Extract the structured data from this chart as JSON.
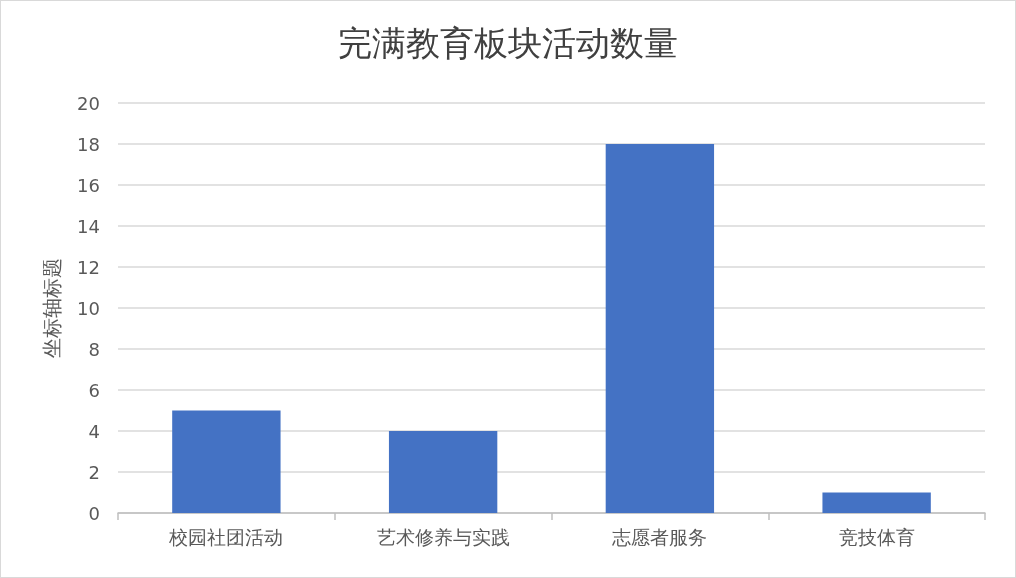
{
  "chart_data": {
    "type": "bar",
    "title": "完满教育板块活动数量",
    "ylabel": "坐标轴标题",
    "categories": [
      "校园社团活动",
      "艺术修养与实践",
      "志愿者服务",
      "竞技体育"
    ],
    "values": [
      5,
      4,
      18,
      1
    ],
    "color": "#4472c4",
    "ylim": [
      0,
      20
    ],
    "yticks": [
      0,
      2,
      4,
      6,
      8,
      10,
      12,
      14,
      16,
      18,
      20
    ],
    "grid": "y"
  }
}
